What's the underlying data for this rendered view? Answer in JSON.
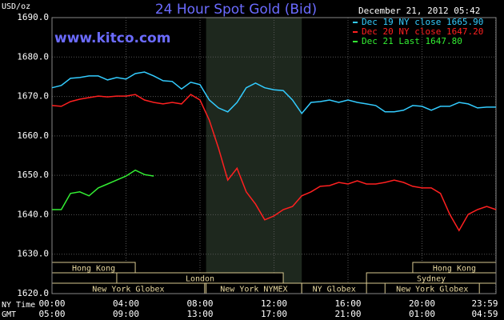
{
  "chart_data": {
    "type": "line",
    "title": "24 Hour Spot Gold (Bid)",
    "site": "www.kitco.com",
    "timestamp": "December 21, 2012 05:42",
    "y_label": "USD/oz",
    "x_label": "NY Time",
    "x2_label": "GMT",
    "xlim": [
      0,
      24
    ],
    "ylim": [
      1620,
      1690
    ],
    "xticks": [
      {
        "value": 0,
        "label": "00:00"
      },
      {
        "value": 4,
        "label": "04:00"
      },
      {
        "value": 8,
        "label": "08:00"
      },
      {
        "value": 12,
        "label": "12:00"
      },
      {
        "value": 16,
        "label": "16:00"
      },
      {
        "value": 20,
        "label": "20:00"
      },
      {
        "value": 23.983,
        "label": "23:59"
      }
    ],
    "x2tick_labels": [
      "05:00",
      "09:00",
      "13:00",
      "17:00",
      "21:00",
      "01:00",
      "04:59"
    ],
    "yticks": [
      {
        "value": 1620,
        "label": "1620.0"
      },
      {
        "value": 1630,
        "label": "1630.0"
      },
      {
        "value": 1640,
        "label": "1640.0"
      },
      {
        "value": 1650,
        "label": "1650.0"
      },
      {
        "value": 1660,
        "label": "1660.0"
      },
      {
        "value": 1670,
        "label": "1670.0"
      },
      {
        "value": 1680,
        "label": "1680.0"
      },
      {
        "value": 1690,
        "label": "1690.0"
      }
    ],
    "grid": true,
    "shaded_range": [
      8.33,
      13.5
    ],
    "sessions": [
      [
        {
          "label": "Hong Kong",
          "start": 0,
          "end": 4.5
        },
        {
          "label": "Hong Kong",
          "start": 19.5,
          "end": 24
        }
      ],
      [
        {
          "label": "London",
          "start": 3.5,
          "end": 12.5
        },
        {
          "label": "Sydney",
          "start": 17,
          "end": 24
        }
      ],
      [
        {
          "label": "New York Globex",
          "start": 0,
          "end": 8.25
        },
        {
          "label": "New York NYMEX",
          "start": 8.33,
          "end": 13.5
        },
        {
          "label": "NY Globex",
          "start": 13.5,
          "end": 17
        },
        {
          "label": "New York Globex",
          "start": 18,
          "end": 23.1
        }
      ]
    ],
    "x": [
      0,
      0.5,
      1,
      1.5,
      2,
      2.5,
      3,
      3.5,
      4,
      4.5,
      5,
      5.5,
      6,
      6.5,
      7,
      7.5,
      8,
      8.5,
      9,
      9.5,
      10,
      10.5,
      11,
      11.5,
      12,
      12.5,
      13,
      13.5,
      14,
      14.5,
      15,
      15.5,
      16,
      16.5,
      17,
      17.5,
      18,
      18.5,
      19,
      19.5,
      20,
      20.5,
      21,
      21.5,
      22,
      22.5,
      23,
      23.5,
      24
    ],
    "series": [
      {
        "name": "Dec 19 NY close 1665.90",
        "color": "#33ccff",
        "values": [
          1672.2,
          1672.8,
          1674.6,
          1674.8,
          1675.2,
          1675.2,
          1674.2,
          1674.8,
          1674.4,
          1675.8,
          1676.2,
          1675.2,
          1674.0,
          1673.8,
          1671.9,
          1673.6,
          1673.0,
          1669.1,
          1667.1,
          1666.1,
          1668.5,
          1672.2,
          1673.4,
          1672.2,
          1671.7,
          1671.5,
          1669.1,
          1665.7,
          1668.5,
          1668.7,
          1669.1,
          1668.5,
          1669.1,
          1668.5,
          1668.1,
          1667.7,
          1666.1,
          1666.1,
          1666.5,
          1667.7,
          1667.5,
          1666.5,
          1667.5,
          1667.5,
          1668.5,
          1668.1,
          1667.1,
          1667.3,
          1667.3
        ]
      },
      {
        "name": "Dec 20 NY close 1647.20",
        "color": "#ff2020",
        "values": [
          1667.7,
          1667.5,
          1668.7,
          1669.3,
          1669.7,
          1670.1,
          1669.9,
          1670.1,
          1670.1,
          1670.5,
          1669.1,
          1668.5,
          1668.1,
          1668.5,
          1668.1,
          1670.5,
          1669.1,
          1664.0,
          1656.9,
          1648.8,
          1651.8,
          1645.8,
          1642.7,
          1638.7,
          1639.7,
          1641.3,
          1642.1,
          1644.8,
          1645.8,
          1647.2,
          1647.4,
          1648.2,
          1647.8,
          1648.6,
          1647.8,
          1647.8,
          1648.2,
          1648.8,
          1648.2,
          1647.2,
          1646.8,
          1646.8,
          1645.4,
          1640.1,
          1636.0,
          1640.1,
          1641.3,
          1642.1,
          1641.3
        ]
      },
      {
        "name": "Dec 21 Last 1647.80",
        "color": "#33ee33",
        "values": [
          1641.3,
          1641.3,
          1645.4,
          1645.8,
          1644.8,
          1646.8,
          1647.8,
          1648.8,
          1649.8,
          1651.3,
          1650.2,
          1649.8,
          null,
          null,
          null,
          null,
          null,
          null,
          null,
          null,
          null,
          null,
          null,
          null,
          null,
          null,
          null,
          null,
          null,
          null,
          null,
          null,
          null,
          null,
          null,
          null,
          null,
          null,
          null,
          null,
          null,
          null,
          null,
          null,
          null,
          null,
          null,
          null,
          null
        ]
      }
    ]
  }
}
